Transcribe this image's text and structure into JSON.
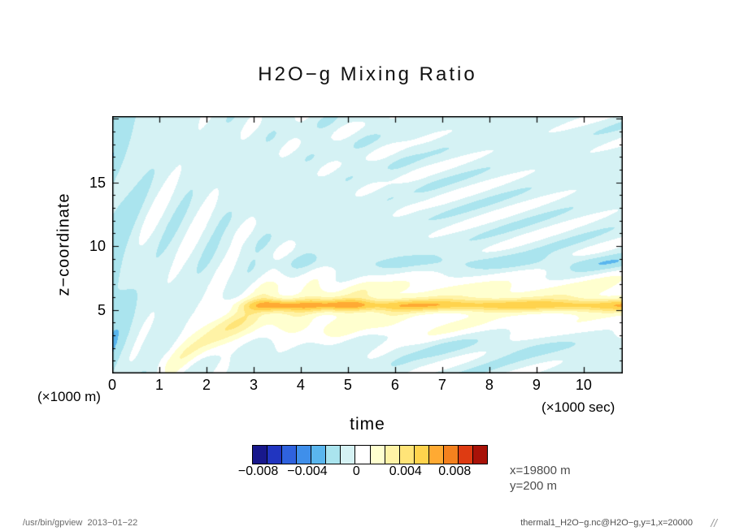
{
  "chart_data": {
    "type": "heatmap",
    "title": "H2O−g Mixing Ratio",
    "xlabel": "time",
    "x_unit_label": "(×1000 sec)",
    "ylabel": "z−coordinate",
    "y_unit_label": "(×1000 m)",
    "x_range": [
      0,
      10.83
    ],
    "y_range": [
      0,
      20.2
    ],
    "xtick_values": [
      0,
      1,
      2,
      3,
      4,
      5,
      6,
      7,
      8,
      9,
      10
    ],
    "xtick_labels": [
      "0",
      "1",
      "2",
      "3",
      "4",
      "5",
      "6",
      "7",
      "8",
      "9",
      "10"
    ],
    "ytick_values": [
      5,
      10,
      15
    ],
    "ytick_labels": [
      "5",
      "10",
      "15"
    ],
    "annotations": {
      "x_slice": "x=19800 m",
      "y_slice": "y=200 m"
    },
    "colorbar": {
      "min": -0.0085,
      "max": 0.0107,
      "n_cells": 16,
      "cell_width": 0.0012,
      "tick_values": [
        -0.008,
        -0.004,
        0,
        0.004,
        0.008
      ],
      "tick_labels": [
        "−0.008",
        "−0.004",
        "0",
        "0.004",
        "0.008"
      ],
      "colors": [
        "#18188c",
        "#2135c0",
        "#2f62de",
        "#3f8fea",
        "#5ab6ee",
        "#aae4ee",
        "#d5f2f4",
        "#ffffff",
        "#ffffcf",
        "#fff3a6",
        "#ffe478",
        "#ffd34d",
        "#ffaa33",
        "#f4811e",
        "#de3b12",
        "#a81208"
      ]
    },
    "features": [
      "Pale cyan diagonal wave streaks (values about -0.001 to -0.002) fan out across the whole domain, steep near the left edge and shallower toward the upper right",
      "Warm horizontal band of positive mixing ratio (about +0.004 to +0.007) centered near z = 5.3 (x1000 m), starting near t = 3 (x1000 sec) and persisting to the right edge",
      "Orange local maxima inside the band near t = 3.5 and t = 5.0",
      "Pale yellow halo around the band spanning roughly z = 3 to z = 7.5, widest between t = 3 and t = 6",
      "Rising warm tongue from (t = 1.5, z = 1) up to the band near (t = 3, z = 5)",
      "Thin cyan layer just above the band near z = 8.7 on the right half"
    ],
    "field_model": {
      "background": -0.0006,
      "left_edge_strip": {
        "amp": 0.0012,
        "t_width": 0.45
      },
      "wave": {
        "amp": 0.001,
        "env": {
          "amp": 0.3,
          "t_wavelength": 7.3,
          "z_wavelength": 13,
          "phase": 1.0
        },
        "train1": {
          "t_wavelength": 1.05,
          "z_wavelength": 7.4,
          "phase": 0.5
        },
        "train2": {
          "t_wavelength": 2.2,
          "z_wavelength": 2.6,
          "phase": 2.0
        },
        "mix_t_start": 2.0,
        "mix_t_span": 5.0
      },
      "band": {
        "z_center": 5.35,
        "z_sigma": 0.5,
        "amp": 0.0046,
        "t_onset": 2.9,
        "onset_width": 0.25
      },
      "band_bumps": [
        {
          "t_center": 3.45,
          "t_sigma": 0.35,
          "amp": 0.0016
        },
        {
          "t_center": 5.0,
          "t_sigma": 0.5,
          "amp": 0.0012
        }
      ],
      "halo_upper": {
        "z_center": 6.4,
        "z_sigma": 1.3,
        "amp": 0.002,
        "t_onset": 3.1,
        "onset_width": 0.45
      },
      "halo_lower": {
        "z_center": 3.9,
        "z_sigma": 1.4,
        "amp": 0.0022,
        "t_onset": 2.4,
        "onset_width": 0.6,
        "t_decay_center": 4.0,
        "t_decay_sigma": 2.5,
        "t_decay_floor": 0.55
      },
      "tongue": {
        "amp": 0.0036,
        "t_center": 2.2,
        "t_sigma": 1.05,
        "t_start": 1.2,
        "z_start": 0.7,
        "slope": 2.3,
        "z_sigma": 1.15
      },
      "cyan_layer_above": {
        "z_center": 8.7,
        "z_sigma": 0.6,
        "amp": 0.0011,
        "t_onset": 4.5,
        "onset_width": 0.8
      },
      "cyan_layer_below": {
        "z_center": 2.2,
        "z_sigma": 0.9,
        "amp": 0.0008,
        "t_onset": 6.0,
        "onset_width": 1.0
      }
    }
  },
  "footer": {
    "left": "/usr/bin/gpview  2013−01−22",
    "right": "thermal1_H2O−g.nc@H2O−g,y=1,x=20000",
    "logo": "//"
  }
}
